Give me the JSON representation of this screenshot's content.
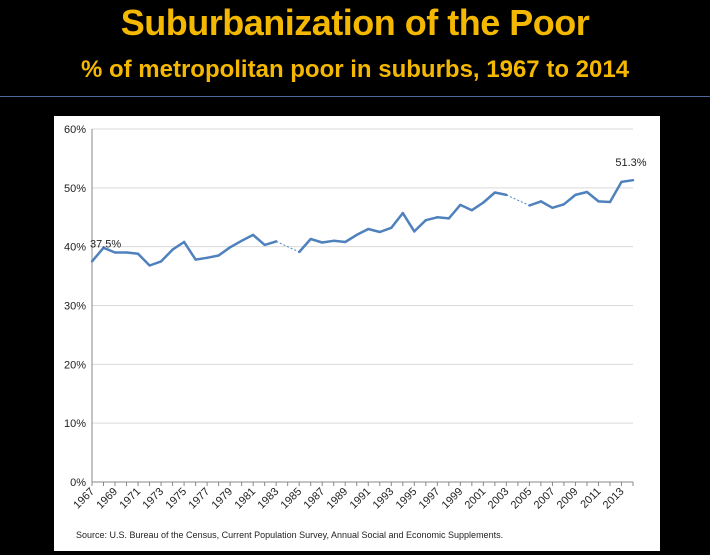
{
  "title": "Suburbanization of the Poor",
  "subtitle": "% of metropolitan poor in suburbs, 1967 to 2014",
  "source": "Source:  U.S. Bureau of the Census, Current Population Survey, Annual Social and Economic Supplements.",
  "colors": {
    "title": "#f5b800",
    "line": "#4f81bd",
    "grid": "#d9d9d9",
    "background": "#000000"
  },
  "chart_data": {
    "type": "line",
    "title": "",
    "xlabel": "",
    "ylabel": "",
    "ylim": [
      0,
      60
    ],
    "y_ticks": [
      "0%",
      "10%",
      "20%",
      "30%",
      "40%",
      "50%",
      "60%"
    ],
    "x_tick_labels": [
      "1967",
      "1969",
      "1971",
      "1973",
      "1975",
      "1977",
      "1979",
      "1981",
      "1983",
      "1985",
      "1987",
      "1989",
      "1991",
      "1993",
      "1995",
      "1997",
      "1999",
      "2001",
      "2003",
      "2005",
      "2007",
      "2009",
      "2011",
      "2013"
    ],
    "grid": true,
    "legend": "none",
    "x": [
      1967,
      1968,
      1969,
      1970,
      1971,
      1972,
      1973,
      1974,
      1975,
      1976,
      1977,
      1978,
      1979,
      1980,
      1981,
      1982,
      1983,
      1985,
      1986,
      1987,
      1988,
      1989,
      1990,
      1991,
      1992,
      1993,
      1994,
      1995,
      1996,
      1997,
      1998,
      1999,
      2000,
      2001,
      2002,
      2003,
      2005,
      2006,
      2007,
      2008,
      2009,
      2010,
      2011,
      2012,
      2013,
      2014
    ],
    "values": [
      37.5,
      39.8,
      39.0,
      39.0,
      38.8,
      36.8,
      37.5,
      39.5,
      40.8,
      37.8,
      38.1,
      38.5,
      39.9,
      41.0,
      42.0,
      40.3,
      40.9,
      39.1,
      41.3,
      40.7,
      41.0,
      40.8,
      42.0,
      43.0,
      42.5,
      43.2,
      45.7,
      42.6,
      44.5,
      45.0,
      44.8,
      47.1,
      46.2,
      47.5,
      49.2,
      48.8,
      47.0,
      47.7,
      46.6,
      47.2,
      48.8,
      49.3,
      47.7,
      47.6,
      51.0,
      51.3
    ],
    "dashed_gaps": [
      [
        1983,
        1985
      ],
      [
        2003,
        2005
      ]
    ],
    "data_labels": [
      {
        "x": 1967,
        "text": "37.5%"
      },
      {
        "x": 2014,
        "text": "51.3%"
      }
    ]
  }
}
